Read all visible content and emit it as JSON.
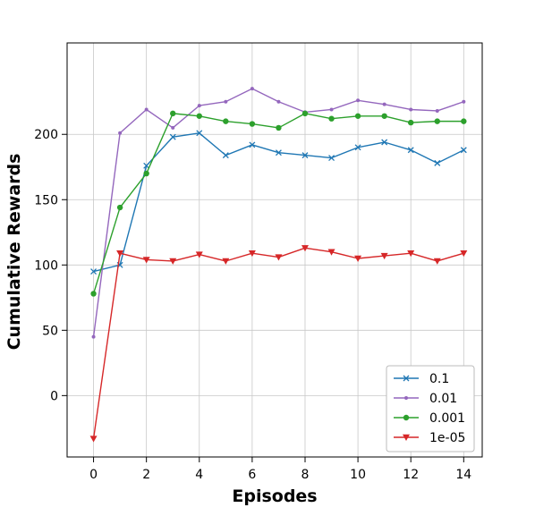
{
  "chart_data": {
    "type": "line",
    "title": "",
    "xlabel": "Episodes",
    "ylabel": "Cumulative Rewards",
    "xlim": [
      -1,
      14.7
    ],
    "ylim": [
      -47,
      270
    ],
    "xticks": [
      0,
      2,
      4,
      6,
      8,
      10,
      12,
      14
    ],
    "yticks": [
      0,
      50,
      100,
      150,
      200
    ],
    "grid": true,
    "legend_position": "lower-right",
    "x": [
      0,
      1,
      2,
      3,
      4,
      5,
      6,
      7,
      8,
      9,
      10,
      11,
      12,
      13,
      14
    ],
    "series": [
      {
        "name": "0.1",
        "color": "#1f77b4",
        "marker": "x",
        "values": [
          95,
          100,
          176,
          198,
          201,
          184,
          192,
          186,
          184,
          182,
          190,
          194,
          188,
          178,
          188
        ]
      },
      {
        "name": "0.01",
        "color": "#9467bd",
        "marker": "point",
        "values": [
          45,
          201,
          219,
          205,
          222,
          225,
          235,
          225,
          217,
          219,
          226,
          223,
          219,
          218,
          225
        ]
      },
      {
        "name": "0.001",
        "color": "#2ca02c",
        "marker": "circle",
        "values": [
          78,
          144,
          170,
          216,
          214,
          210,
          208,
          205,
          216,
          212,
          214,
          214,
          209,
          210,
          210
        ]
      },
      {
        "name": "1e-05",
        "color": "#d62728",
        "marker": "triangle-down",
        "values": [
          -33,
          109,
          104,
          103,
          108,
          103,
          109,
          106,
          113,
          110,
          105,
          107,
          109,
          103,
          109
        ]
      }
    ]
  }
}
